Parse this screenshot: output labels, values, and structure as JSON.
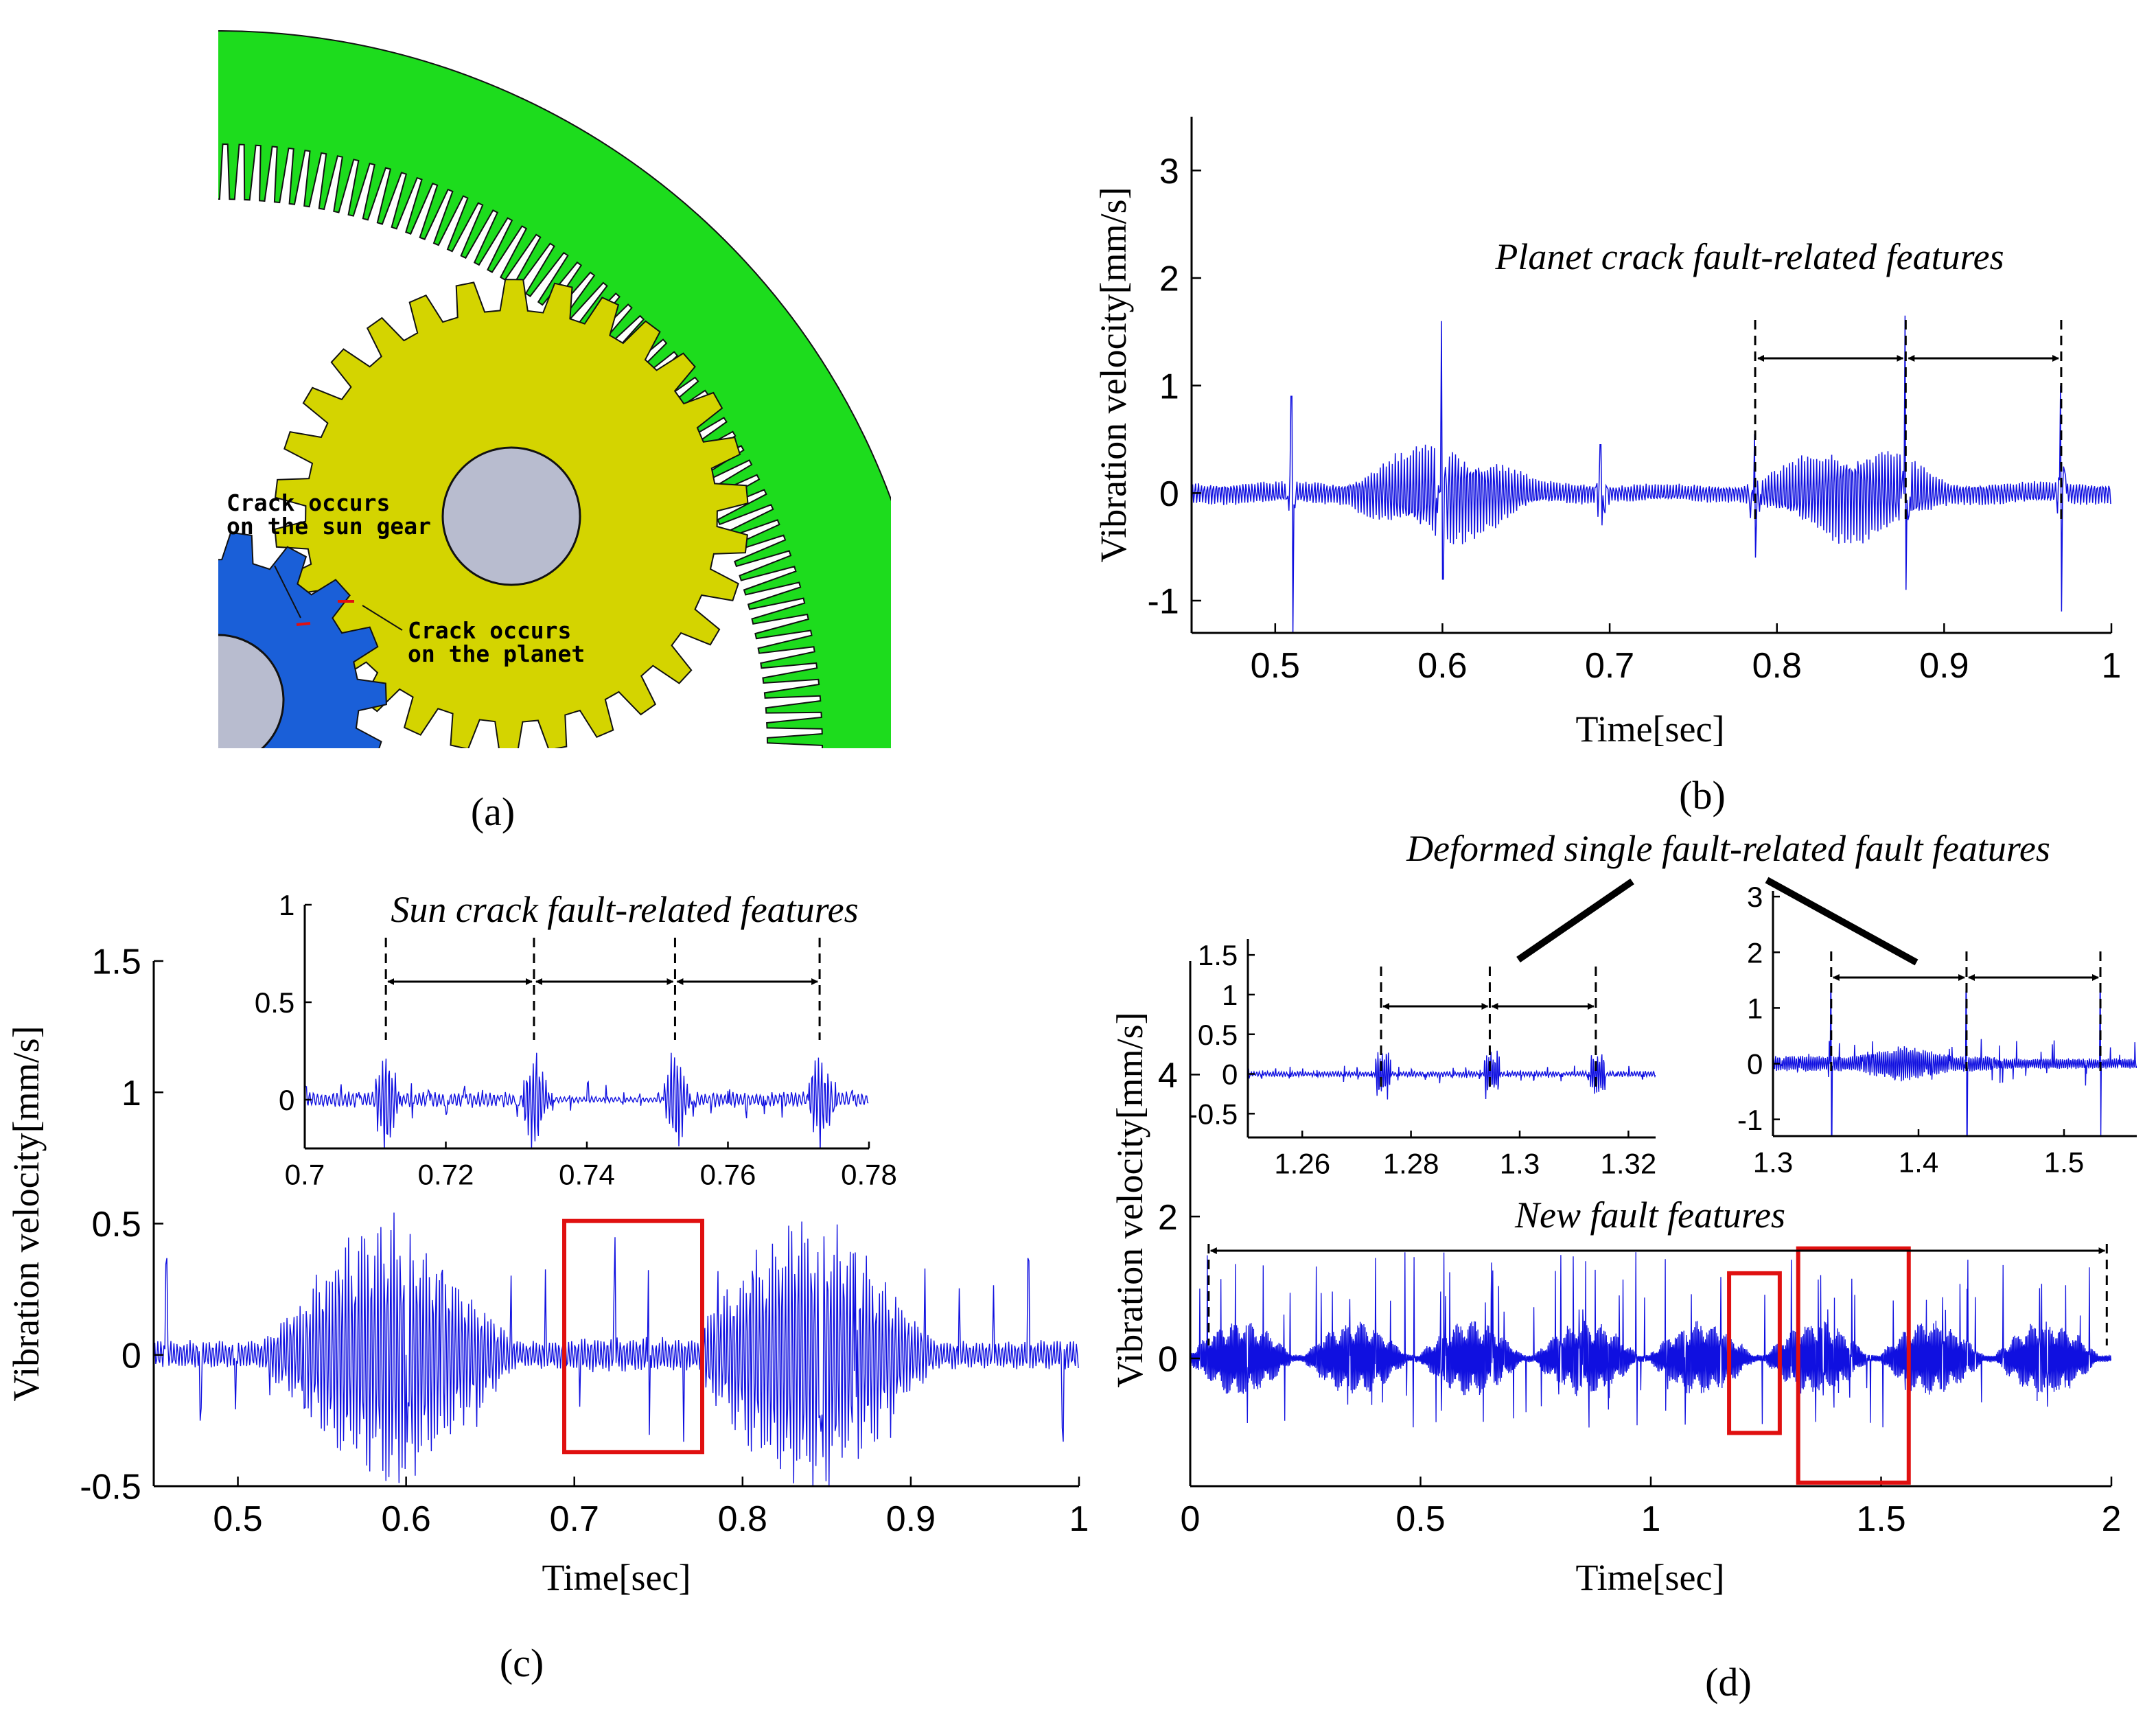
{
  "panels": {
    "a": {
      "label": "(a)",
      "annotations": [
        "Crack occurs on the sun gear",
        "Crack occurs on the planet"
      ]
    },
    "b": {
      "label": "(b)"
    },
    "c": {
      "label": "(c)"
    },
    "d": {
      "label": "(d)"
    }
  },
  "colors": {
    "signal": "#1010e0",
    "ring_gear": "#1ddc1d",
    "planet_gear": "#d4d400",
    "sun_gear": "#1a5fd8",
    "shaft": "#b8bccf",
    "highlight_box": "#e01010",
    "crack_mark": "#e01010"
  },
  "chart_data": [
    {
      "id": "b",
      "type": "line",
      "xlabel": "Time[sec]",
      "ylabel": "Vibration velocity[mm/s]",
      "xlim": [
        0.45,
        1.0
      ],
      "ylim": [
        -1.3,
        3.5
      ],
      "xticks": [
        0.5,
        0.6,
        0.7,
        0.8,
        0.9,
        1
      ],
      "xtick_labels": [
        "0.5",
        "0.6",
        "0.7",
        "0.8",
        "0.9",
        "1"
      ],
      "yticks": [
        -1,
        0,
        1,
        2,
        3
      ],
      "ytick_labels": [
        "-1",
        "0",
        "1",
        "2",
        "3"
      ],
      "grid": false,
      "series": [
        {
          "color": "#1010e0",
          "spikes": [
            [
              0.51,
              0.9,
              -1.3
            ],
            [
              0.6,
              1.6,
              -0.8
            ],
            [
              0.695,
              0.45,
              -0.3
            ],
            [
              0.787,
              0.55,
              -0.6
            ],
            [
              0.877,
              1.65,
              -0.9
            ],
            [
              0.97,
              1.0,
              -1.1
            ]
          ],
          "envelope_peaks": [
            [
              0.6,
              0.45
            ],
            [
              0.845,
              0.45
            ]
          ]
        }
      ],
      "annotations": [
        "Planet crack fault-related features"
      ],
      "marker_times": [
        0.787,
        0.877,
        0.97
      ]
    },
    {
      "id": "c",
      "type": "line",
      "xlabel": "Time[sec]",
      "ylabel": "Vibration velocity[mm/s]",
      "xlim": [
        0.45,
        1.0
      ],
      "ylim": [
        -0.5,
        1.5
      ],
      "xticks": [
        0.5,
        0.6,
        0.7,
        0.8,
        0.9,
        1
      ],
      "xtick_labels": [
        "0.5",
        "0.6",
        "0.7",
        "0.8",
        "0.9",
        "1"
      ],
      "yticks": [
        -0.5,
        0,
        0.5,
        1,
        1.5
      ],
      "ytick_labels": [
        "-0.5",
        "0",
        "0.5",
        "1",
        "1.5"
      ],
      "grid": false,
      "series": [
        {
          "color": "#1010e0",
          "spike_period": 0.0205,
          "envelope_peaks": [
            [
              0.59,
              0.48
            ],
            [
              0.84,
              0.48
            ]
          ]
        }
      ],
      "highlight_box": {
        "x": [
          0.694,
          0.776
        ],
        "y": [
          -0.37,
          0.51
        ]
      },
      "inset": {
        "xlim": [
          0.7,
          0.78
        ],
        "ylim": [
          -0.25,
          1.0
        ],
        "xticks": [
          0.7,
          0.72,
          0.74,
          0.76,
          0.78
        ],
        "xtick_labels": [
          "0.7",
          "0.72",
          "0.74",
          "0.76",
          "0.78"
        ],
        "yticks": [
          0,
          0.5,
          1
        ],
        "ytick_labels": [
          "0",
          "0.5",
          "1"
        ],
        "annotation": "Sun crack fault-related features",
        "marker_times": [
          0.7115,
          0.7325,
          0.7525,
          0.773
        ]
      }
    },
    {
      "id": "d",
      "type": "line",
      "xlabel": "Time[sec]",
      "ylabel": "Vibration velocity[mm/s]",
      "xlim": [
        0,
        2
      ],
      "ylim": [
        -1.8,
        5.6
      ],
      "xticks": [
        0,
        0.5,
        1,
        1.5,
        2
      ],
      "xtick_labels": [
        "0",
        "0.5",
        "1",
        "1.5",
        "2"
      ],
      "yticks": [
        0,
        2,
        4
      ],
      "ytick_labels": [
        "0",
        "2",
        "4"
      ],
      "grid": false,
      "series": [
        {
          "color": "#1010e0",
          "burst_period": 0.25
        }
      ],
      "annotations": [
        "New fault features",
        "Deformed single fault-related fault features"
      ],
      "marker_times": [
        0.04,
        1.99
      ],
      "highlight_boxes": [
        {
          "x": [
            1.17,
            1.28
          ],
          "y": [
            -1.05,
            1.2
          ]
        },
        {
          "x": [
            1.32,
            1.56
          ],
          "y": [
            -1.75,
            1.55
          ]
        }
      ],
      "insets": [
        {
          "xlim": [
            1.25,
            1.325
          ],
          "ylim": [
            -0.8,
            1.7
          ],
          "xticks": [
            1.26,
            1.28,
            1.3,
            1.32
          ],
          "xtick_labels": [
            "1.26",
            "1.28",
            "1.3",
            "1.32"
          ],
          "yticks": [
            -0.5,
            0,
            0.5,
            1,
            1.5
          ],
          "ytick_labels": [
            "-0.5",
            "0",
            "0.5",
            "1",
            "1.5"
          ],
          "marker_times": [
            1.2745,
            1.2945,
            1.314
          ]
        },
        {
          "xlim": [
            1.3,
            1.55
          ],
          "ylim": [
            -1.3,
            3.1
          ],
          "xticks": [
            1.3,
            1.4,
            1.5
          ],
          "xtick_labels": [
            "1.3",
            "1.4",
            "1.5"
          ],
          "yticks": [
            -1,
            0,
            1,
            2,
            3
          ],
          "ytick_labels": [
            "-1",
            "0",
            "1",
            "2",
            "3"
          ],
          "marker_times": [
            1.34,
            1.433,
            1.525
          ]
        }
      ]
    }
  ]
}
